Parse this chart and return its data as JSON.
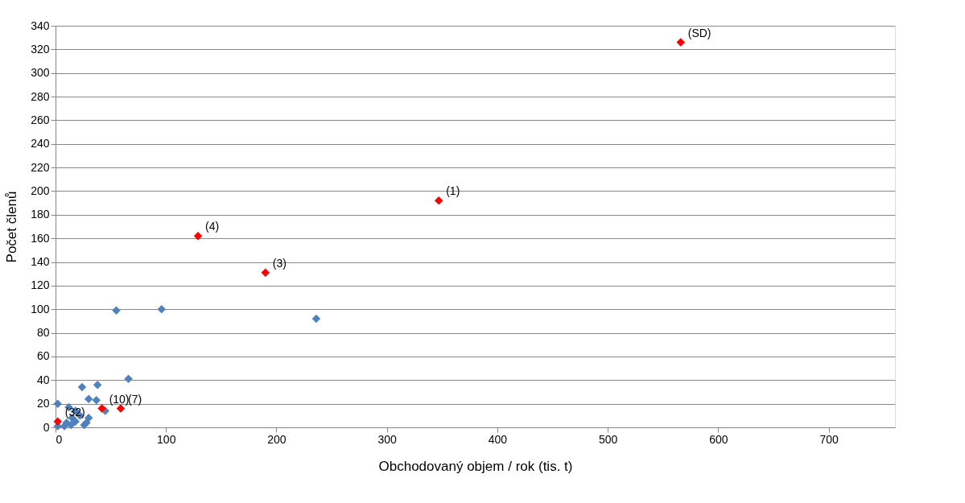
{
  "chart_data": {
    "type": "scatter",
    "xlabel": "Obchodovaný objem / rok  (tis. t)",
    "ylabel": "Počet členů",
    "xlim": [
      0,
      760
    ],
    "xticks": [
      0,
      100,
      200,
      300,
      400,
      500,
      600,
      700
    ],
    "ylim": [
      0,
      340
    ],
    "yticks": [
      0,
      20,
      40,
      60,
      80,
      100,
      120,
      140,
      160,
      180,
      200,
      220,
      240,
      260,
      280,
      300,
      320,
      340
    ],
    "grid": "y",
    "marker": "diamond",
    "legend": false,
    "series": [
      {
        "color": "#4f81bd",
        "x": [
          55,
          96,
          236,
          66,
          38,
          24,
          37,
          30,
          2,
          12,
          45,
          18,
          22,
          15,
          30,
          10,
          28,
          2,
          8,
          26,
          14,
          18
        ],
        "values": [
          99,
          100,
          92,
          41,
          36,
          34,
          23,
          24,
          20,
          17,
          14,
          14,
          10,
          8,
          8,
          4,
          4,
          1,
          1,
          2,
          2,
          5
        ]
      },
      {
        "color": "#ff0000",
        "x": [
          2,
          42,
          59,
          129,
          190,
          347,
          566
        ],
        "values": [
          5,
          16,
          16,
          162,
          131,
          192,
          326
        ]
      }
    ],
    "annotations": [
      {
        "text": "(32)",
        "x": 2,
        "y": 5
      },
      {
        "text": "(10)",
        "x": 42,
        "y": 16
      },
      {
        "text": "(7)",
        "x": 59,
        "y": 16
      },
      {
        "text": "(4)",
        "x": 129,
        "y": 162
      },
      {
        "text": "(3)",
        "x": 190,
        "y": 131
      },
      {
        "text": "(1)",
        "x": 347,
        "y": 192
      },
      {
        "text": "(SD)",
        "x": 566,
        "y": 326
      }
    ]
  }
}
